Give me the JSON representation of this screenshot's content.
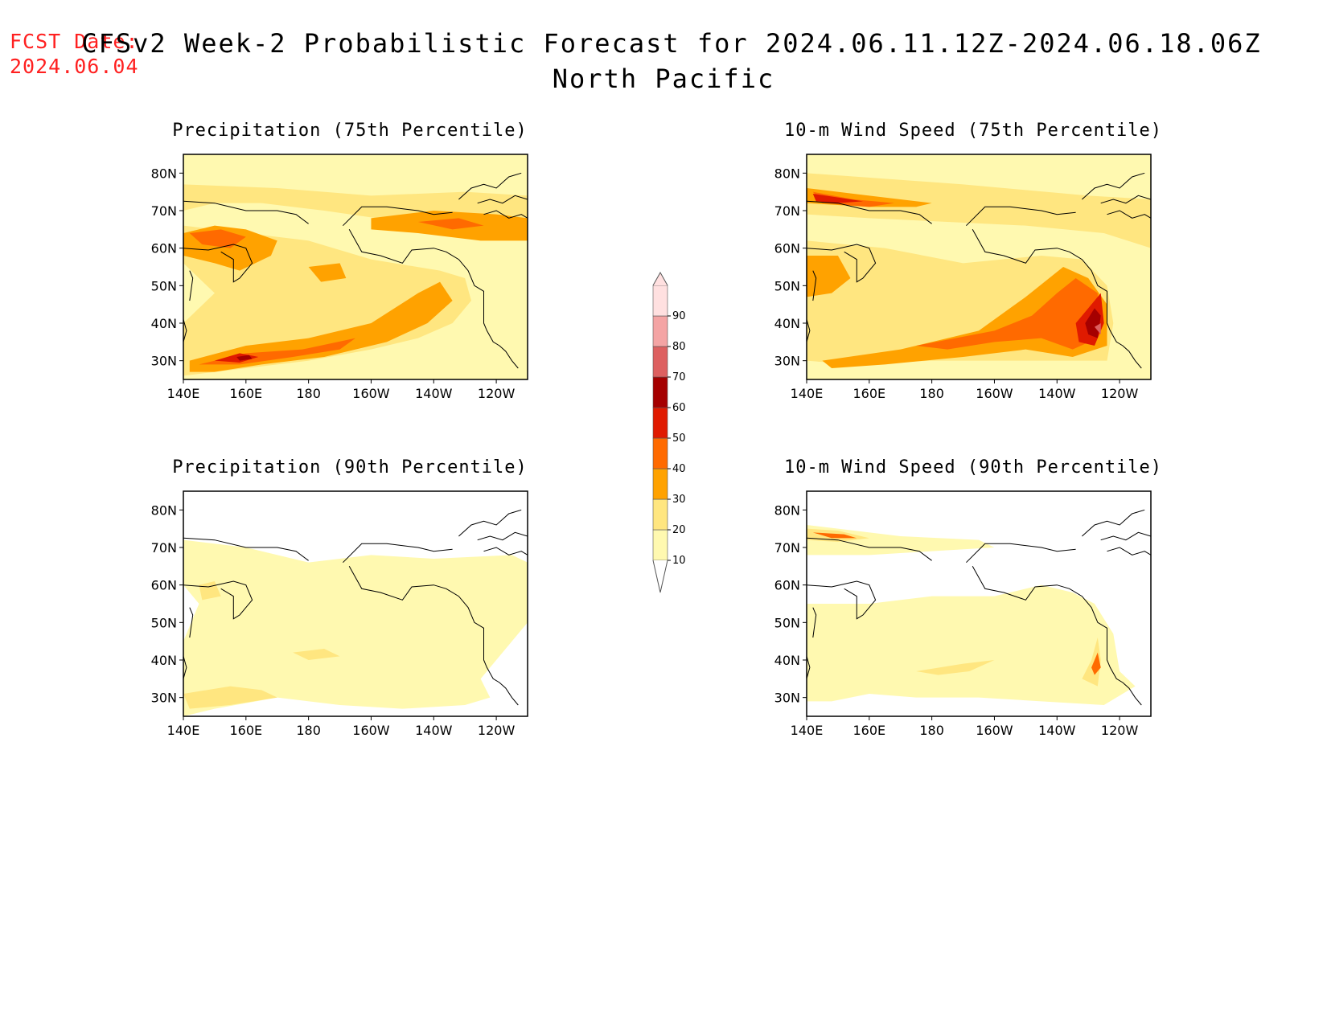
{
  "header": {
    "fcst_label": "FCST Date:",
    "fcst_date": "2024.06.04",
    "title": "CFSv2 Week-2 Probabilistic Forecast for 2024.06.11.12Z-2024.06.18.06Z",
    "region": "North Pacific"
  },
  "panels": [
    {
      "id": "precip75",
      "title": "Precipitation (75th Percentile)"
    },
    {
      "id": "wind75",
      "title": "10-m Wind Speed (75th Percentile)"
    },
    {
      "id": "precip90",
      "title": "Precipitation (90th Percentile)"
    },
    {
      "id": "wind90",
      "title": "10-m Wind Speed (90th Percentile)"
    }
  ],
  "axes": {
    "lon_labels": [
      "140E",
      "160E",
      "180",
      "160W",
      "140W",
      "120W"
    ],
    "lat_labels": [
      "80N",
      "70N",
      "60N",
      "50N",
      "40N",
      "30N"
    ]
  },
  "colorbar": {
    "levels": [
      "10",
      "20",
      "30",
      "40",
      "50",
      "60",
      "70",
      "80",
      "90"
    ],
    "colors": [
      "#fff9b0",
      "#ffe680",
      "#ffa200",
      "#ff6a00",
      "#e01a00",
      "#a50000",
      "#dd6060",
      "#f4a4a4",
      "#ffe0e0"
    ]
  }
}
